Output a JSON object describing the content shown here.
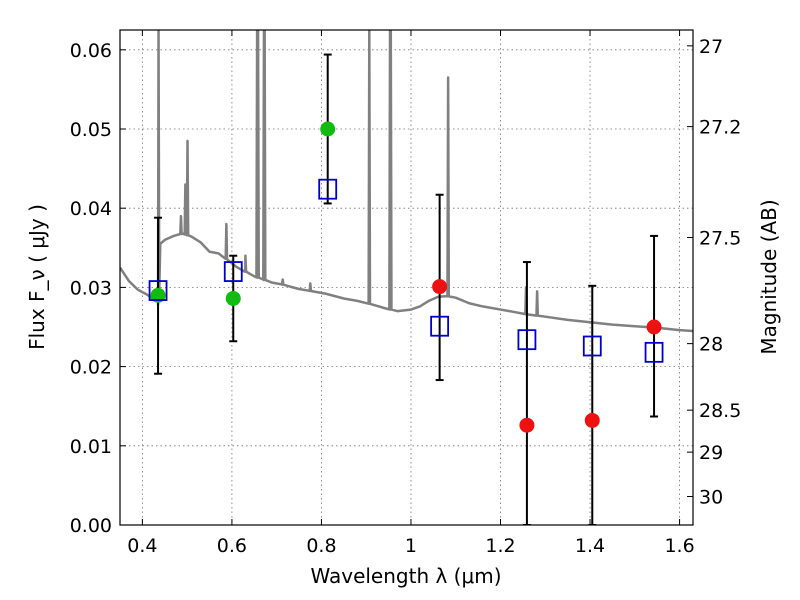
{
  "chart_data": {
    "type": "scatter",
    "xlabel": "Wavelength  λ (μm)",
    "ylabel": "Flux  F_ν  ( μJy )",
    "ylabel_right": "Magnitude (AB)",
    "xlim": [
      0.35,
      1.63
    ],
    "ylim": [
      0.0,
      0.0625
    ],
    "xticks": [
      0.4,
      0.6,
      0.8,
      1.0,
      1.2,
      1.4,
      1.6
    ],
    "xtick_labels": [
      "0.4",
      "0.6",
      "0.8",
      "1",
      "1.2",
      "1.4",
      "1.6"
    ],
    "yticks": [
      0.0,
      0.01,
      0.02,
      0.03,
      0.04,
      0.05,
      0.06
    ],
    "ytick_labels": [
      "0.00",
      "0.01",
      "0.02",
      "0.03",
      "0.04",
      "0.05",
      "0.06"
    ],
    "right_ticks": [
      {
        "flux": 0.0605,
        "label": "27"
      },
      {
        "flux": 0.0503,
        "label": "27.2"
      },
      {
        "flux": 0.0363,
        "label": "27.5"
      },
      {
        "flux": 0.0229,
        "label": "28"
      },
      {
        "flux": 0.0145,
        "label": "28.5"
      },
      {
        "flux": 0.0092,
        "label": "29"
      },
      {
        "flux": 0.0036,
        "label": "30"
      }
    ],
    "grid": true,
    "colors": {
      "model": "#808080",
      "model_points": "#0000cc",
      "detections": "#11bb11",
      "upper_limits": "#ee1111",
      "error_bars": "#000000"
    },
    "model_spectrum": {
      "x": [
        0.35,
        0.37,
        0.39,
        0.41,
        0.425,
        0.435,
        0.44,
        0.45,
        0.47,
        0.49,
        0.51,
        0.53,
        0.55,
        0.57,
        0.59,
        0.61,
        0.63,
        0.65,
        0.67,
        0.69,
        0.71,
        0.73,
        0.75,
        0.77,
        0.79,
        0.81,
        0.83,
        0.85,
        0.88,
        0.91,
        0.94,
        0.97,
        1.0,
        1.02,
        1.04,
        1.06,
        1.08,
        1.1,
        1.13,
        1.16,
        1.2,
        1.23,
        1.26,
        1.3,
        1.35,
        1.4,
        1.45,
        1.5,
        1.55,
        1.6,
        1.63
      ],
      "y": [
        0.0325,
        0.0308,
        0.0297,
        0.0291,
        0.0285,
        0.0278,
        0.0355,
        0.036,
        0.0365,
        0.0368,
        0.0364,
        0.0357,
        0.0345,
        0.0343,
        0.0335,
        0.0326,
        0.032,
        0.0314,
        0.031,
        0.0306,
        0.0304,
        0.0301,
        0.0298,
        0.0296,
        0.0294,
        0.0292,
        0.0289,
        0.0286,
        0.0283,
        0.0279,
        0.0274,
        0.027,
        0.0272,
        0.0276,
        0.0283,
        0.0288,
        0.0289,
        0.0287,
        0.028,
        0.0276,
        0.0272,
        0.0269,
        0.0266,
        0.0263,
        0.0259,
        0.0256,
        0.0253,
        0.0251,
        0.0249,
        0.0246,
        0.0245
      ],
      "emission_lines": [
        {
          "x": 0.4361,
          "peak": 0.0625
        },
        {
          "x": 0.4862,
          "peak": 0.039
        },
        {
          "x": 0.496,
          "peak": 0.043
        },
        {
          "x": 0.5008,
          "peak": 0.0485
        },
        {
          "x": 0.5876,
          "peak": 0.038
        },
        {
          "x": 0.6302,
          "peak": 0.034
        },
        {
          "x": 0.6563,
          "peak": 0.0625
        },
        {
          "x": 0.6584,
          "peak": 0.0625
        },
        {
          "x": 0.6716,
          "peak": 0.0625
        },
        {
          "x": 0.6731,
          "peak": 0.0625
        },
        {
          "x": 0.7135,
          "peak": 0.031
        },
        {
          "x": 0.7751,
          "peak": 0.0305
        },
        {
          "x": 0.9069,
          "peak": 0.0625
        },
        {
          "x": 0.9532,
          "peak": 0.0625
        },
        {
          "x": 0.9549,
          "peak": 0.0625
        },
        {
          "x": 1.083,
          "peak": 0.0565
        },
        {
          "x": 1.2818,
          "peak": 0.0295
        },
        {
          "x": 1.257,
          "peak": 0.03
        }
      ]
    },
    "model_points": {
      "x": [
        0.435,
        0.603,
        0.814,
        1.064,
        1.259,
        1.405,
        1.543
      ],
      "y": [
        0.0296,
        0.032,
        0.0424,
        0.0251,
        0.0234,
        0.0226,
        0.0218
      ]
    },
    "detections": {
      "x": [
        0.435,
        0.603,
        0.814
      ],
      "y": [
        0.029,
        0.0286,
        0.05
      ],
      "err_low": [
        0.0191,
        0.0232,
        0.0406
      ],
      "err_high": [
        0.0388,
        0.034,
        0.0594
      ]
    },
    "upper_limits": {
      "x": [
        1.064,
        1.259,
        1.405,
        1.543
      ],
      "y": [
        0.0301,
        0.0126,
        0.0132,
        0.025
      ],
      "err_low": [
        0.0183,
        0.0,
        0.0,
        0.0137
      ],
      "err_high": [
        0.0417,
        0.0332,
        0.0302,
        0.0365
      ]
    }
  }
}
